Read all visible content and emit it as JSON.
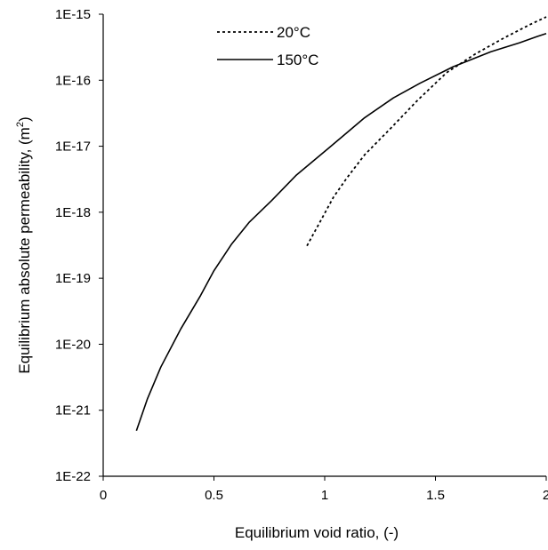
{
  "chart_data": {
    "type": "line",
    "title": "",
    "xlabel": "Equilibrium void ratio, (-)",
    "ylabel": "Equilibrium absolute permeability, (m",
    "ylabel_sup": "2",
    "ylabel_close": ")",
    "xlim": [
      0,
      2
    ],
    "ylim": [
      1e-22,
      1e-15
    ],
    "yscale": "log",
    "grid": false,
    "legend_position": "top-center",
    "x_ticks": [
      {
        "value": 0,
        "label": "0"
      },
      {
        "value": 0.5,
        "label": "0.5"
      },
      {
        "value": 1,
        "label": "1"
      },
      {
        "value": 1.5,
        "label": "1.5"
      },
      {
        "value": 2,
        "label": "2"
      }
    ],
    "y_ticks": [
      {
        "value": 1e-22,
        "label": "1E-22"
      },
      {
        "value": 1e-21,
        "label": "1E-21"
      },
      {
        "value": 1e-20,
        "label": "1E-20"
      },
      {
        "value": 1e-19,
        "label": "1E-19"
      },
      {
        "value": 1e-18,
        "label": "1E-18"
      },
      {
        "value": 1e-17,
        "label": "1E-17"
      },
      {
        "value": 1e-16,
        "label": "1E-16"
      },
      {
        "value": 1e-15,
        "label": "1E-15"
      }
    ],
    "series": [
      {
        "name": "20°C",
        "style": "dotted",
        "color": "#000000",
        "x": [
          0.92,
          0.97,
          1.04,
          1.1,
          1.18,
          1.3,
          1.42,
          1.55,
          1.68,
          1.8,
          1.92,
          2.0
        ],
        "y": [
          3.1e-19,
          6.3e-19,
          1.7e-18,
          3.3e-18,
          7.4e-18,
          1.9e-17,
          5e-17,
          1.3e-16,
          2.5e-16,
          4.2e-16,
          6.8e-16,
          9.1e-16
        ]
      },
      {
        "name": "150°C",
        "style": "solid",
        "color": "#000000",
        "x": [
          0.15,
          0.2,
          0.26,
          0.35,
          0.44,
          0.5,
          0.58,
          0.66,
          0.76,
          0.87,
          1.02,
          1.18,
          1.31,
          1.43,
          1.58,
          1.75,
          1.88,
          1.96,
          2.0
        ],
        "y": [
          4.9e-22,
          1.5e-21,
          4.5e-21,
          1.7e-20,
          5.5e-20,
          1.3e-19,
          3.3e-19,
          7.1e-19,
          1.5e-18,
          3.6e-18,
          9.5e-18,
          2.7e-17,
          5.4e-17,
          9e-17,
          1.6e-16,
          2.7e-16,
          3.7e-16,
          4.6e-16,
          5.1e-16
        ]
      }
    ]
  }
}
